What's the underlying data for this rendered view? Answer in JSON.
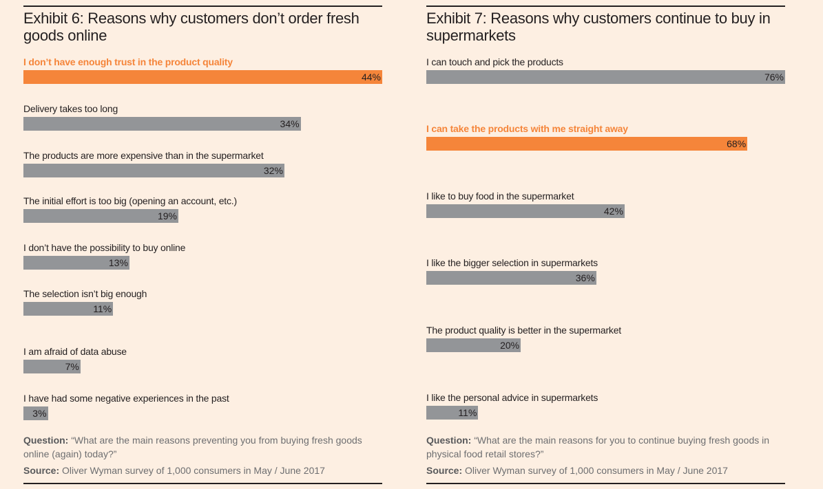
{
  "chart_data": [
    {
      "type": "bar",
      "orientation": "horizontal",
      "title": "Exhibit 6: Reasons why customers don’t order fresh goods online",
      "highlight_color": "#f5853a",
      "bar_color": "#939598",
      "xlim": [
        0,
        44
      ],
      "categories": [
        "I don’t have enough trust in the product quality",
        "Delivery takes too long",
        "The products are more expensive than in the supermarket",
        "The initial effort is too big (opening an account, etc.)",
        "I don’t have the possibility to buy online",
        "The selection isn’t big enough",
        "I am afraid of data abuse",
        "I have had some negative experiences in the past"
      ],
      "values": [
        44,
        34,
        32,
        19,
        13,
        11,
        7,
        3
      ],
      "labels": [
        "44%",
        "34%",
        "32%",
        "19%",
        "13%",
        "11%",
        "7%",
        "3%"
      ],
      "highlight": [
        0
      ],
      "question_label": "Question:",
      "question": "“What are the main reasons preventing you from buying fresh goods online (again) today?”",
      "source_label": "Source:",
      "source": "Oliver Wyman survey of 1,000 consumers in May / June 2017"
    },
    {
      "type": "bar",
      "orientation": "horizontal",
      "title": "Exhibit 7: Reasons why customers continue to buy in supermarkets",
      "highlight_color": "#f5853a",
      "bar_color": "#939598",
      "xlim": [
        0,
        76
      ],
      "categories": [
        "I can touch and pick the products",
        "I can take the products with me straight away",
        "I like to buy food in the supermarket",
        "I like the bigger selection in supermarkets",
        "The product quality is better in the supermarket",
        "I like the personal advice in supermarkets"
      ],
      "values": [
        76,
        68,
        42,
        36,
        20,
        11
      ],
      "labels": [
        "76%",
        "68%",
        "42%",
        "36%",
        "20%",
        "11%"
      ],
      "highlight": [
        1
      ],
      "question_label": "Question:",
      "question": "“What are the main reasons for you to continue buying fresh goods in physical food retail stores?”",
      "source_label": "Source:",
      "source": "Oliver Wyman survey of 1,000 consumers in May / June 2017"
    }
  ]
}
